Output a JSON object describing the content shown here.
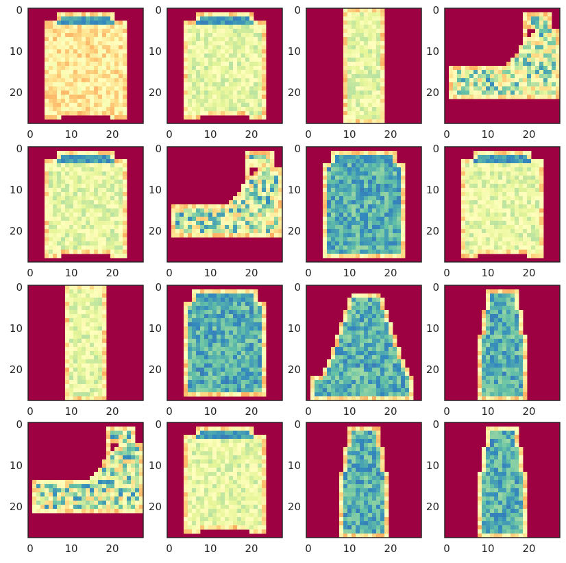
{
  "chart_data": {
    "type": "heatmap",
    "layout": {
      "rows": 4,
      "cols": 4
    },
    "image_size": [
      28,
      28
    ],
    "colormap": "Spectral",
    "colors": {
      "background_cell": "#9e0142",
      "frame": "#262626",
      "colormap_stops": [
        "#9e0142",
        "#d53e4f",
        "#f46d43",
        "#fdae61",
        "#fee08b",
        "#ffffbf",
        "#e6f598",
        "#abdda4",
        "#66c2a5",
        "#3288bd",
        "#5e4fa2"
      ]
    },
    "axes": {
      "xlim": [
        0,
        28
      ],
      "ylim": [
        28,
        0
      ],
      "xticks": [
        0,
        10,
        20
      ],
      "yticks": [
        0,
        10,
        20
      ],
      "xtick_labels": [
        "0",
        "10",
        "20"
      ],
      "ytick_labels": [
        "0",
        "10",
        "20"
      ],
      "grid": false
    },
    "panels": [
      {
        "item": "pullover",
        "tone": "warm"
      },
      {
        "item": "pullover",
        "tone": "light"
      },
      {
        "item": "trouser",
        "tone": "light"
      },
      {
        "item": "sneaker",
        "tone": "mixed"
      },
      {
        "item": "pullover",
        "tone": "light"
      },
      {
        "item": "sneaker",
        "tone": "mixed"
      },
      {
        "item": "shirt",
        "tone": "blue"
      },
      {
        "item": "pullover",
        "tone": "light"
      },
      {
        "item": "trouser",
        "tone": "light"
      },
      {
        "item": "shirt",
        "tone": "blue"
      },
      {
        "item": "bag",
        "tone": "blue"
      },
      {
        "item": "dress",
        "tone": "blue"
      },
      {
        "item": "sneaker",
        "tone": "mixed"
      },
      {
        "item": "pullover",
        "tone": "light"
      },
      {
        "item": "dress",
        "tone": "blue"
      },
      {
        "item": "dress",
        "tone": "blue"
      }
    ]
  }
}
